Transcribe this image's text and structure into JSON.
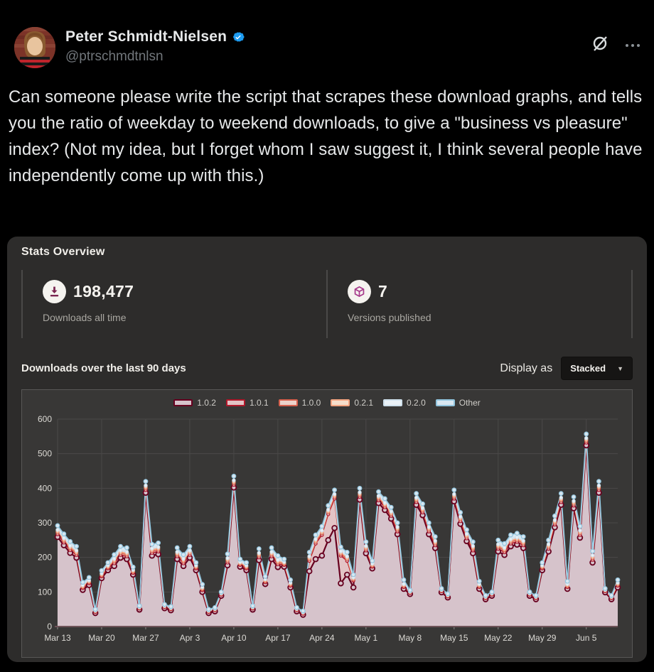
{
  "tweet": {
    "author": "Peter Schmidt-Nielsen",
    "handle": "@ptrschmdtnlsn",
    "body": "Can someone please write the script that scrapes these download graphs, and tells you the ratio of weekday to weekend downloads, to give a \"business vs pleasure\" index? (Not my idea, but I forget whom I saw suggest it, I think several people have independently come up with this.)",
    "verified_badge_color": "#1d9bf0"
  },
  "header_icons": {
    "grok": "grok-icon",
    "more": "more-options"
  },
  "stats": {
    "title": "Stats Overview",
    "downloads": {
      "value": "198,477",
      "label": "Downloads all time",
      "icon": "download-icon",
      "icon_color": "#7a2550"
    },
    "versions": {
      "value": "7",
      "label": "Versions published",
      "icon": "package-icon",
      "icon_color": "#a63a8b"
    }
  },
  "chart_header": {
    "title": "Downloads over the last 90 days",
    "display_as_label": "Display as",
    "display_as_value": "Stacked"
  },
  "chart_data": {
    "type": "area",
    "stacked": true,
    "title": "Downloads over the last 90 days",
    "days": 90,
    "start_date": "Mar 13",
    "x_tick_labels": [
      "Mar 13",
      "Mar 20",
      "Mar 27",
      "Apr 3",
      "Apr 10",
      "Apr 17",
      "Apr 24",
      "May 1",
      "May 8",
      "May 15",
      "May 22",
      "May 29",
      "Jun 5"
    ],
    "x_tick_day_index": [
      0,
      7,
      14,
      21,
      28,
      35,
      42,
      49,
      56,
      63,
      70,
      77,
      84
    ],
    "ylim": [
      0,
      600
    ],
    "y_ticks": [
      0,
      100,
      200,
      300,
      400,
      500,
      600
    ],
    "grid": true,
    "legend_position": "top",
    "background": "#383736",
    "grid_color": "#4a4948",
    "axis_text_color": "#dcdad5",
    "baseline_color": "#6e5258",
    "series": [
      {
        "name": "1.0.2",
        "stroke": "#67001f",
        "fill": "#d6c3cb",
        "values": [
          259,
          235,
          213,
          199,
          106,
          120,
          39,
          140,
          163,
          175,
          199,
          195,
          150,
          49,
          387,
          205,
          209,
          53,
          47,
          195,
          175,
          199,
          163,
          100,
          39,
          44,
          89,
          177,
          402,
          173,
          163,
          49,
          192,
          123,
          195,
          172,
          173,
          113,
          44,
          34,
          160,
          195,
          205,
          250,
          285,
          125,
          150,
          113,
          367,
          212,
          168,
          357,
          337,
          312,
          267,
          109,
          94,
          352,
          322,
          267,
          227,
          99,
          84,
          362,
          297,
          247,
          212,
          109,
          79,
          89,
          217,
          207,
          232,
          237,
          227,
          89,
          79,
          163,
          217,
          287,
          352,
          109,
          342,
          257,
          524,
          185,
          387,
          99,
          79,
          113
        ]
      },
      {
        "name": "1.0.1",
        "stroke": "#b2182b",
        "fill": "#e3c4c6",
        "values": [
          8,
          8,
          8,
          8,
          5,
          5,
          3,
          5,
          5,
          8,
          8,
          8,
          5,
          3,
          8,
          8,
          8,
          3,
          3,
          8,
          8,
          8,
          5,
          5,
          3,
          3,
          3,
          8,
          8,
          5,
          5,
          3,
          8,
          5,
          8,
          8,
          5,
          5,
          3,
          3,
          30,
          45,
          60,
          75,
          85,
          80,
          40,
          20,
          8,
          8,
          5,
          8,
          8,
          8,
          8,
          5,
          3,
          8,
          8,
          8,
          8,
          3,
          3,
          8,
          8,
          8,
          8,
          5,
          3,
          3,
          8,
          8,
          8,
          8,
          8,
          3,
          3,
          5,
          8,
          8,
          8,
          5,
          8,
          8,
          8,
          8,
          8,
          3,
          3,
          5
        ]
      },
      {
        "name": "1.0.0",
        "stroke": "#d6604d",
        "fill": "#ecd2ca",
        "values": [
          5,
          5,
          5,
          5,
          3,
          3,
          2,
          3,
          3,
          5,
          5,
          5,
          3,
          2,
          5,
          5,
          5,
          2,
          2,
          5,
          5,
          5,
          3,
          3,
          2,
          2,
          2,
          5,
          5,
          3,
          3,
          2,
          5,
          3,
          5,
          5,
          3,
          3,
          2,
          2,
          5,
          5,
          5,
          5,
          5,
          5,
          5,
          3,
          5,
          5,
          3,
          5,
          5,
          5,
          5,
          3,
          2,
          5,
          5,
          5,
          5,
          2,
          2,
          5,
          5,
          5,
          5,
          3,
          2,
          2,
          5,
          5,
          5,
          5,
          5,
          2,
          2,
          3,
          5,
          5,
          5,
          3,
          5,
          5,
          5,
          5,
          5,
          2,
          2,
          3
        ]
      },
      {
        "name": "0.2.1",
        "stroke": "#f4a582",
        "fill": "#f6decb",
        "values": [
          4,
          4,
          4,
          4,
          3,
          3,
          1,
          3,
          3,
          4,
          4,
          4,
          3,
          1,
          4,
          4,
          4,
          1,
          1,
          4,
          4,
          4,
          3,
          3,
          1,
          1,
          1,
          4,
          4,
          3,
          3,
          1,
          4,
          3,
          4,
          4,
          3,
          3,
          1,
          1,
          4,
          4,
          4,
          4,
          4,
          4,
          4,
          3,
          4,
          4,
          3,
          4,
          4,
          4,
          4,
          3,
          1,
          4,
          4,
          4,
          4,
          1,
          1,
          4,
          4,
          4,
          4,
          3,
          1,
          1,
          4,
          4,
          4,
          4,
          4,
          1,
          1,
          3,
          4,
          4,
          4,
          3,
          4,
          4,
          4,
          4,
          4,
          1,
          1,
          3
        ]
      },
      {
        "name": "0.2.0",
        "stroke": "#cfe0ec",
        "fill": "#eaf1f6",
        "values": [
          4,
          4,
          4,
          4,
          3,
          3,
          1,
          3,
          3,
          4,
          4,
          4,
          3,
          1,
          4,
          4,
          4,
          1,
          1,
          4,
          4,
          4,
          3,
          3,
          1,
          1,
          1,
          4,
          4,
          3,
          3,
          1,
          4,
          3,
          4,
          4,
          3,
          3,
          1,
          1,
          4,
          4,
          4,
          4,
          4,
          4,
          4,
          3,
          4,
          4,
          3,
          4,
          4,
          4,
          4,
          3,
          1,
          4,
          4,
          4,
          4,
          1,
          1,
          4,
          4,
          4,
          4,
          3,
          1,
          1,
          4,
          4,
          4,
          4,
          4,
          1,
          1,
          3,
          4,
          4,
          4,
          3,
          4,
          4,
          4,
          4,
          4,
          1,
          1,
          3
        ]
      },
      {
        "name": "Other",
        "stroke": "#92c5de",
        "fill": "#d9e7f1",
        "values": [
          12,
          12,
          12,
          12,
          8,
          8,
          4,
          8,
          8,
          12,
          12,
          12,
          8,
          4,
          12,
          12,
          12,
          4,
          4,
          12,
          12,
          12,
          8,
          8,
          4,
          4,
          4,
          12,
          12,
          8,
          8,
          4,
          12,
          8,
          12,
          12,
          8,
          8,
          4,
          4,
          12,
          12,
          12,
          12,
          12,
          12,
          12,
          8,
          12,
          12,
          8,
          12,
          12,
          12,
          12,
          12,
          4,
          12,
          12,
          12,
          12,
          4,
          4,
          12,
          12,
          12,
          12,
          8,
          4,
          4,
          12,
          12,
          12,
          12,
          12,
          4,
          4,
          8,
          12,
          12,
          12,
          8,
          12,
          12,
          12,
          12,
          12,
          4,
          4,
          8
        ]
      }
    ]
  }
}
